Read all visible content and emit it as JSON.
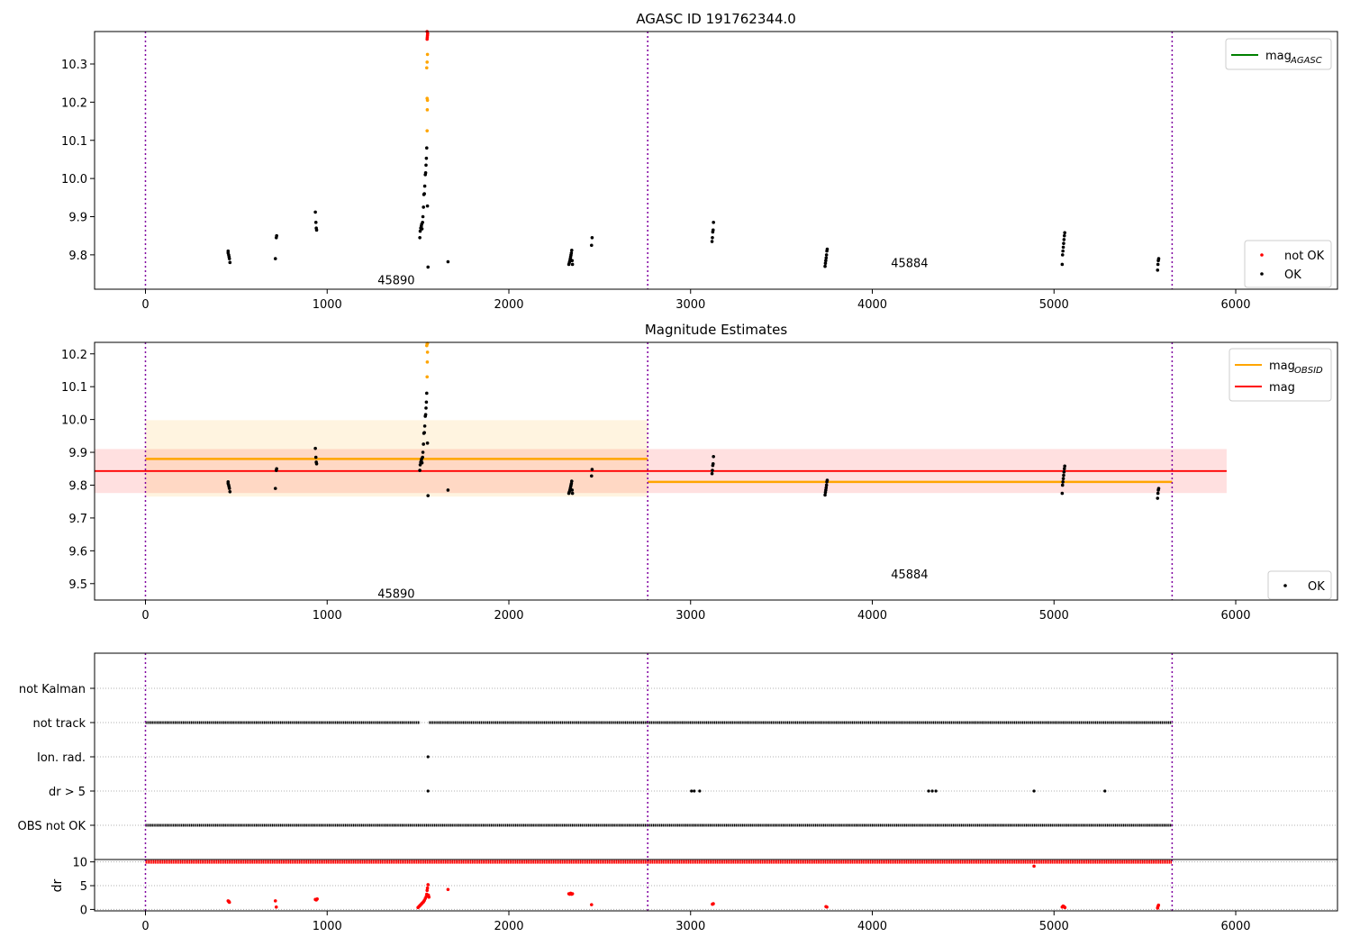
{
  "chart_data": [
    {
      "type": "scatter",
      "title": "AGASC ID 191762344.0",
      "xlim": [
        -280,
        6560
      ],
      "ylim": [
        9.71,
        10.385
      ],
      "xticks": [
        "0",
        "1000",
        "2000",
        "3000",
        "4000",
        "5000",
        "6000"
      ],
      "yticks": [
        "9.8",
        "9.9",
        "10.0",
        "10.1",
        "10.2",
        "10.3"
      ],
      "vlines": [
        0,
        2764,
        5650
      ],
      "obsid_labels": [
        {
          "text": "45890",
          "x": 1380,
          "y": 9.735
        },
        {
          "text": "45884",
          "x": 4205,
          "y": 9.78
        }
      ],
      "legend_lines": [
        {
          "name": "mag",
          "sub": "AGASC",
          "color": "#008000"
        }
      ],
      "legend_points": [
        {
          "name": "not OK",
          "color": "#ff0000"
        },
        {
          "name": "OK",
          "color": "#000000"
        }
      ],
      "series": [
        {
          "name": "OK",
          "color": "#000000",
          "points": [
            [
              455,
              9.81
            ],
            [
              455,
              9.805
            ],
            [
              458,
              9.8
            ],
            [
              460,
              9.795
            ],
            [
              462,
              9.79
            ],
            [
              465,
              9.78
            ],
            [
              715,
              9.79
            ],
            [
              720,
              9.845
            ],
            [
              722,
              9.85
            ],
            [
              935,
              9.912
            ],
            [
              938,
              9.885
            ],
            [
              940,
              9.87
            ],
            [
              942,
              9.865
            ],
            [
              1510,
              9.845
            ],
            [
              1512,
              9.862
            ],
            [
              1515,
              9.87
            ],
            [
              1518,
              9.875
            ],
            [
              1520,
              9.88
            ],
            [
              1522,
              9.868
            ],
            [
              1525,
              9.885
            ],
            [
              1527,
              9.9
            ],
            [
              1530,
              9.925
            ],
            [
              1532,
              9.958
            ],
            [
              1535,
              9.96
            ],
            [
              1537,
              9.98
            ],
            [
              1540,
              10.01
            ],
            [
              1542,
              10.015
            ],
            [
              1544,
              10.035
            ],
            [
              1546,
              10.053
            ],
            [
              1548,
              10.08
            ],
            [
              1552,
              9.928
            ],
            [
              1555,
              9.768
            ],
            [
              1665,
              9.782
            ],
            [
              2330,
              9.775
            ],
            [
              2333,
              9.78
            ],
            [
              2336,
              9.785
            ],
            [
              2338,
              9.79
            ],
            [
              2340,
              9.795
            ],
            [
              2342,
              9.8
            ],
            [
              2344,
              9.805
            ],
            [
              2346,
              9.812
            ],
            [
              2348,
              9.785
            ],
            [
              2350,
              9.775
            ],
            [
              2455,
              9.825
            ],
            [
              2458,
              9.845
            ],
            [
              3118,
              9.835
            ],
            [
              3120,
              9.845
            ],
            [
              3122,
              9.86
            ],
            [
              3124,
              9.865
            ],
            [
              3126,
              9.885
            ],
            [
              3740,
              9.77
            ],
            [
              3742,
              9.778
            ],
            [
              3744,
              9.785
            ],
            [
              3746,
              9.792
            ],
            [
              3748,
              9.8
            ],
            [
              3750,
              9.81
            ],
            [
              3752,
              9.815
            ],
            [
              5045,
              9.775
            ],
            [
              5047,
              9.8
            ],
            [
              5049,
              9.81
            ],
            [
              5051,
              9.82
            ],
            [
              5053,
              9.83
            ],
            [
              5055,
              9.84
            ],
            [
              5057,
              9.85
            ],
            [
              5059,
              9.858
            ],
            [
              5570,
              9.76
            ],
            [
              5572,
              9.775
            ],
            [
              5574,
              9.785
            ],
            [
              5576,
              9.79
            ]
          ]
        },
        {
          "name": "orange",
          "color": "#ffa500",
          "points": [
            [
              1550,
              10.125
            ],
            [
              1551,
              10.18
            ],
            [
              1552,
              10.205
            ],
            [
              1550,
              10.21
            ],
            [
              1548,
              10.29
            ],
            [
              1550,
              10.305
            ],
            [
              1552,
              10.325
            ]
          ]
        },
        {
          "name": "not OK",
          "color": "#ff0000",
          "points": [
            [
              1550,
              10.365
            ],
            [
              1551,
              10.37
            ],
            [
              1552,
              10.375
            ],
            [
              1553,
              10.38
            ],
            [
              1550,
              10.385
            ]
          ]
        }
      ]
    },
    {
      "type": "scatter",
      "title": "Magnitude Estimates",
      "xlim": [
        -280,
        6560
      ],
      "ylim": [
        9.45,
        10.235
      ],
      "xticks": [
        "0",
        "1000",
        "2000",
        "3000",
        "4000",
        "5000",
        "6000"
      ],
      "yticks": [
        "9.5",
        "9.6",
        "9.7",
        "9.8",
        "9.9",
        "10.0",
        "10.1",
        "10.2"
      ],
      "vlines": [
        0,
        2764,
        5650
      ],
      "obsid_labels": [
        {
          "text": "45890",
          "x": 1380,
          "y": 9.47
        },
        {
          "text": "45884",
          "x": 4205,
          "y": 9.53
        }
      ],
      "mag_obsid": [
        {
          "x0": 0,
          "x1": 2764,
          "value": 9.88,
          "low": 9.765,
          "high": 9.998
        },
        {
          "x0": 2764,
          "x1": 5650,
          "value": 9.81,
          "low": 9.81,
          "high": 9.81
        }
      ],
      "mag": {
        "x0": -280,
        "x1": 5950,
        "value": 9.843,
        "low": 9.776,
        "high": 9.91,
        "band_x0": -280,
        "band_x1": 5950
      },
      "legend_lines": [
        {
          "name": "mag",
          "sub": "OBSID",
          "color": "#ffa500"
        },
        {
          "name": "mag",
          "sub": "",
          "color": "#ff0000"
        }
      ],
      "legend_points": [
        {
          "name": "OK",
          "color": "#000000"
        }
      ],
      "series": [
        {
          "name": "OK",
          "color": "#000000",
          "points": [
            [
              455,
              9.81
            ],
            [
              455,
              9.805
            ],
            [
              458,
              9.8
            ],
            [
              460,
              9.795
            ],
            [
              462,
              9.79
            ],
            [
              465,
              9.78
            ],
            [
              715,
              9.79
            ],
            [
              720,
              9.845
            ],
            [
              722,
              9.85
            ],
            [
              935,
              9.912
            ],
            [
              938,
              9.885
            ],
            [
              940,
              9.87
            ],
            [
              942,
              9.865
            ],
            [
              1510,
              9.845
            ],
            [
              1512,
              9.862
            ],
            [
              1515,
              9.87
            ],
            [
              1518,
              9.875
            ],
            [
              1520,
              9.88
            ],
            [
              1522,
              9.868
            ],
            [
              1525,
              9.885
            ],
            [
              1527,
              9.9
            ],
            [
              1530,
              9.925
            ],
            [
              1532,
              9.958
            ],
            [
              1535,
              9.96
            ],
            [
              1537,
              9.98
            ],
            [
              1540,
              10.01
            ],
            [
              1542,
              10.015
            ],
            [
              1544,
              10.035
            ],
            [
              1546,
              10.053
            ],
            [
              1548,
              10.08
            ],
            [
              1552,
              9.928
            ],
            [
              1555,
              9.768
            ],
            [
              1665,
              9.785
            ],
            [
              2330,
              9.775
            ],
            [
              2333,
              9.78
            ],
            [
              2336,
              9.785
            ],
            [
              2338,
              9.79
            ],
            [
              2340,
              9.795
            ],
            [
              2342,
              9.8
            ],
            [
              2344,
              9.805
            ],
            [
              2346,
              9.812
            ],
            [
              2348,
              9.785
            ],
            [
              2350,
              9.775
            ],
            [
              2455,
              9.828
            ],
            [
              2458,
              9.848
            ],
            [
              3118,
              9.835
            ],
            [
              3120,
              9.845
            ],
            [
              3122,
              9.86
            ],
            [
              3124,
              9.865
            ],
            [
              3126,
              9.887
            ],
            [
              3740,
              9.77
            ],
            [
              3742,
              9.778
            ],
            [
              3744,
              9.785
            ],
            [
              3746,
              9.792
            ],
            [
              3748,
              9.8
            ],
            [
              3750,
              9.81
            ],
            [
              3752,
              9.815
            ],
            [
              5045,
              9.775
            ],
            [
              5047,
              9.8
            ],
            [
              5049,
              9.81
            ],
            [
              5051,
              9.82
            ],
            [
              5053,
              9.83
            ],
            [
              5055,
              9.84
            ],
            [
              5057,
              9.85
            ],
            [
              5059,
              9.858
            ],
            [
              5570,
              9.76
            ],
            [
              5572,
              9.775
            ],
            [
              5574,
              9.785
            ],
            [
              5576,
              9.79
            ]
          ]
        },
        {
          "name": "orange",
          "color": "#ffa500",
          "points": [
            [
              1550,
              10.13
            ],
            [
              1551,
              10.175
            ],
            [
              1552,
              10.205
            ],
            [
              1548,
              10.225
            ],
            [
              1550,
              10.23
            ],
            [
              1552,
              10.232
            ]
          ]
        }
      ]
    },
    {
      "type": "scatter",
      "title": "",
      "xlim": [
        -280,
        6560
      ],
      "flag_rows": [
        "not Kalman",
        "not track",
        "Ion. rad.",
        "dr > 5",
        "OBS not OK"
      ],
      "flag_segments": [
        {
          "row": "not track",
          "x0": 0,
          "x1": 1510
        },
        {
          "row": "not track",
          "x0": 1560,
          "x1": 5650
        },
        {
          "row": "OBS not OK",
          "x0": 0,
          "x1": 5650
        }
      ],
      "flag_points": [
        {
          "row": "Ion. rad.",
          "x": 1555
        },
        {
          "row": "dr > 5",
          "x": 1555
        },
        {
          "row": "dr > 5",
          "x": 3005
        },
        {
          "row": "dr > 5",
          "x": 3020
        },
        {
          "row": "dr > 5",
          "x": 3050
        },
        {
          "row": "dr > 5",
          "x": 4310
        },
        {
          "row": "dr > 5",
          "x": 4330
        },
        {
          "row": "dr > 5",
          "x": 4350
        },
        {
          "row": "dr > 5",
          "x": 4890
        },
        {
          "row": "dr > 5",
          "x": 5280
        }
      ],
      "vlines": [
        0,
        2764,
        5650
      ]
    },
    {
      "type": "scatter",
      "title": "",
      "ylabel": "dr",
      "xlim": [
        -280,
        6560
      ],
      "ylim": [
        -0.3,
        10.5
      ],
      "xticks": [
        "0",
        "1000",
        "2000",
        "3000",
        "4000",
        "5000",
        "6000"
      ],
      "yticks": [
        "0",
        "5",
        "10"
      ],
      "vlines": [
        0,
        2764,
        5650
      ],
      "dr_band": {
        "x0": 0,
        "x1": 5650,
        "value": 10
      },
      "series": [
        {
          "name": "dr",
          "color": "#ff0000",
          "points": [
            [
              455,
              1.8
            ],
            [
              458,
              1.7
            ],
            [
              460,
              1.6
            ],
            [
              462,
              1.5
            ],
            [
              715,
              1.8
            ],
            [
              720,
              0.5
            ],
            [
              935,
              2.1
            ],
            [
              940,
              2.0
            ],
            [
              945,
              2.2
            ],
            [
              1500,
              0.4
            ],
            [
              1505,
              0.6
            ],
            [
              1510,
              0.8
            ],
            [
              1515,
              1.0
            ],
            [
              1520,
              1.2
            ],
            [
              1525,
              1.4
            ],
            [
              1530,
              1.6
            ],
            [
              1535,
              1.9
            ],
            [
              1540,
              2.3
            ],
            [
              1545,
              2.7
            ],
            [
              1548,
              3.2
            ],
            [
              1550,
              4.0
            ],
            [
              1552,
              4.5
            ],
            [
              1555,
              5.2
            ],
            [
              1557,
              3.0
            ],
            [
              1560,
              2.6
            ],
            [
              1665,
              4.2
            ],
            [
              2330,
              3.3
            ],
            [
              2335,
              3.2
            ],
            [
              2340,
              3.4
            ],
            [
              2345,
              3.2
            ],
            [
              2350,
              3.3
            ],
            [
              2455,
              1.0
            ],
            [
              3120,
              1.1
            ],
            [
              3125,
              1.2
            ],
            [
              3745,
              0.6
            ],
            [
              3750,
              0.5
            ],
            [
              4890,
              9.1
            ],
            [
              5045,
              0.5
            ],
            [
              5050,
              0.7
            ],
            [
              5055,
              0.6
            ],
            [
              5060,
              0.4
            ],
            [
              5570,
              0.3
            ],
            [
              5572,
              0.6
            ],
            [
              5575,
              0.9
            ]
          ]
        }
      ]
    }
  ]
}
